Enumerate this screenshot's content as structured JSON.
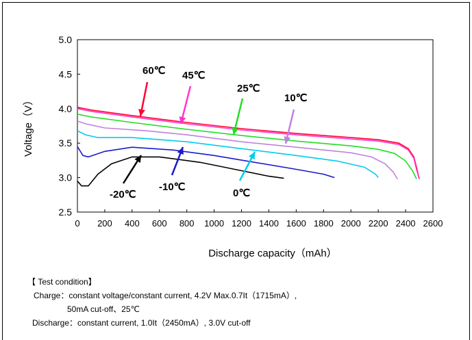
{
  "chart_data": {
    "type": "line",
    "xlabel": "Discharge capacity（mAh）",
    "ylabel": "Voltage（V）",
    "xlim": [
      0,
      2600
    ],
    "ylim": [
      2.5,
      5.0
    ],
    "xticks": [
      "0",
      "200",
      "400",
      "600",
      "800",
      "1000",
      "1200",
      "1400",
      "1600",
      "1800",
      "2000",
      "2200",
      "2400",
      "2600"
    ],
    "yticks": [
      "2.5",
      "3.0",
      "3.5",
      "4.0",
      "4.5",
      "5.0"
    ],
    "grid": false,
    "legend": "none",
    "series": [
      {
        "name": "60℃",
        "color": "#ff0033",
        "points": [
          [
            0,
            4.02
          ],
          [
            100,
            3.98
          ],
          [
            400,
            3.9
          ],
          [
            800,
            3.8
          ],
          [
            1200,
            3.71
          ],
          [
            1600,
            3.64
          ],
          [
            2000,
            3.58
          ],
          [
            2200,
            3.55
          ],
          [
            2350,
            3.5
          ],
          [
            2420,
            3.42
          ],
          [
            2460,
            3.3
          ],
          [
            2480,
            3.15
          ],
          [
            2500,
            2.98
          ]
        ]
      },
      {
        "name": "45℃",
        "color": "#ff33cc",
        "points": [
          [
            0,
            4.0
          ],
          [
            100,
            3.96
          ],
          [
            400,
            3.88
          ],
          [
            800,
            3.78
          ],
          [
            1200,
            3.69
          ],
          [
            1600,
            3.62
          ],
          [
            2000,
            3.56
          ],
          [
            2200,
            3.53
          ],
          [
            2350,
            3.48
          ],
          [
            2420,
            3.4
          ],
          [
            2460,
            3.28
          ],
          [
            2480,
            3.12
          ],
          [
            2500,
            2.98
          ]
        ]
      },
      {
        "name": "25℃",
        "color": "#22dd22",
        "points": [
          [
            0,
            3.92
          ],
          [
            100,
            3.88
          ],
          [
            400,
            3.8
          ],
          [
            800,
            3.7
          ],
          [
            1200,
            3.61
          ],
          [
            1600,
            3.53
          ],
          [
            2000,
            3.46
          ],
          [
            2200,
            3.41
          ],
          [
            2320,
            3.35
          ],
          [
            2400,
            3.24
          ],
          [
            2450,
            3.1
          ],
          [
            2480,
            2.98
          ]
        ]
      },
      {
        "name": "10℃",
        "color": "#c080e0",
        "points": [
          [
            0,
            3.82
          ],
          [
            60,
            3.78
          ],
          [
            200,
            3.72
          ],
          [
            500,
            3.68
          ],
          [
            800,
            3.62
          ],
          [
            1200,
            3.52
          ],
          [
            1600,
            3.44
          ],
          [
            2000,
            3.36
          ],
          [
            2150,
            3.3
          ],
          [
            2250,
            3.2
          ],
          [
            2310,
            3.08
          ],
          [
            2340,
            2.98
          ]
        ]
      },
      {
        "name": "0℃",
        "color": "#00ccee",
        "points": [
          [
            0,
            3.68
          ],
          [
            60,
            3.62
          ],
          [
            150,
            3.58
          ],
          [
            400,
            3.58
          ],
          [
            800,
            3.52
          ],
          [
            1200,
            3.42
          ],
          [
            1600,
            3.32
          ],
          [
            1900,
            3.24
          ],
          [
            2100,
            3.15
          ],
          [
            2180,
            3.05
          ],
          [
            2200,
            3.0
          ]
        ]
      },
      {
        "name": "-10℃",
        "color": "#1a1acc",
        "points": [
          [
            0,
            3.45
          ],
          [
            40,
            3.32
          ],
          [
            80,
            3.3
          ],
          [
            200,
            3.38
          ],
          [
            400,
            3.44
          ],
          [
            700,
            3.4
          ],
          [
            1000,
            3.32
          ],
          [
            1300,
            3.22
          ],
          [
            1600,
            3.12
          ],
          [
            1800,
            3.05
          ],
          [
            1880,
            3.0
          ]
        ]
      },
      {
        "name": "-20℃",
        "color": "#000000",
        "points": [
          [
            0,
            2.95
          ],
          [
            30,
            2.88
          ],
          [
            80,
            2.88
          ],
          [
            150,
            3.05
          ],
          [
            250,
            3.2
          ],
          [
            400,
            3.3
          ],
          [
            600,
            3.3
          ],
          [
            900,
            3.22
          ],
          [
            1200,
            3.1
          ],
          [
            1400,
            3.02
          ],
          [
            1510,
            2.99
          ]
        ]
      }
    ],
    "annotations": [
      "60℃",
      "45℃",
      "25℃",
      "10℃",
      "0℃",
      "-10℃",
      "-20℃"
    ]
  },
  "test_condition": {
    "heading": "【 Test condition】",
    "charge_line1": "Charge：constant voltage/constant current,  4.2V Max.0.7It（1715mA）,",
    "charge_line2": "50mA cut-off、25℃",
    "discharge_line": "Discharge：constant current,  1.0It（2450mA）, 3.0V cut-off"
  }
}
